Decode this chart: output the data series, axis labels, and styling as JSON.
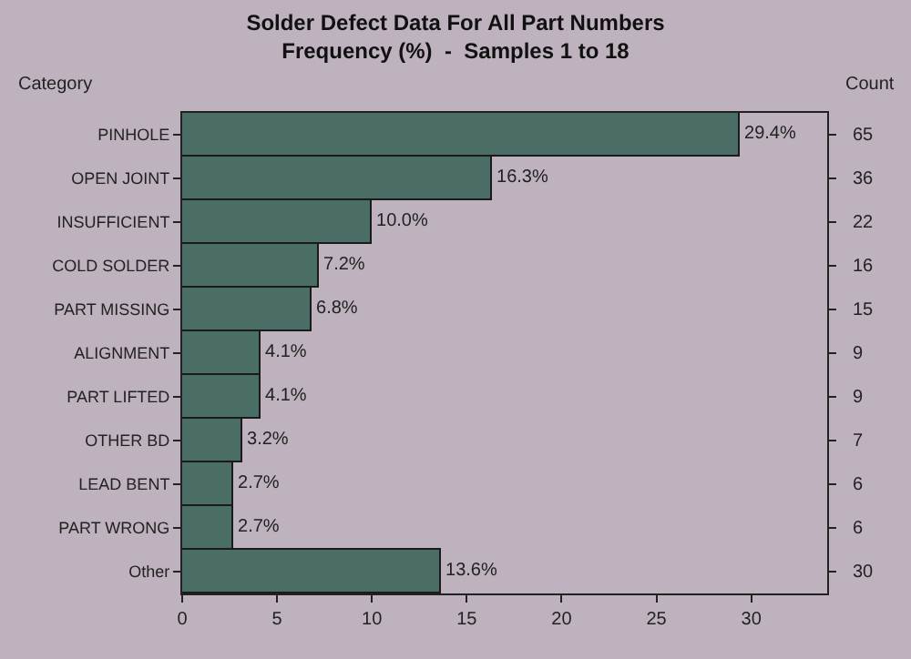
{
  "chart_data": {
    "type": "bar",
    "orientation": "horizontal",
    "title": "Solder Defect Data For All Part Numbers",
    "subtitle": "Frequency (%)  -  Samples 1 to 18",
    "ylabel": "Category",
    "y2label": "Count",
    "categories": [
      "PINHOLE",
      "OPEN JOINT",
      "INSUFFICIENT",
      "COLD SOLDER",
      "PART MISSING",
      "ALIGNMENT",
      "PART LIFTED",
      "OTHER BD",
      "LEAD BENT",
      "PART WRONG",
      "Other"
    ],
    "values": [
      29.4,
      16.3,
      10.0,
      7.2,
      6.8,
      4.1,
      4.1,
      3.2,
      2.7,
      2.7,
      13.6
    ],
    "value_labels": [
      "29.4%",
      "16.3%",
      "10.0%",
      "7.2%",
      "6.8%",
      "4.1%",
      "4.1%",
      "3.2%",
      "2.7%",
      "2.7%",
      "13.6%"
    ],
    "color": "#4a6e66",
    "xlim": [
      0,
      34
    ],
    "xticks": [
      0,
      5,
      10,
      15,
      20,
      25,
      30
    ],
    "grid": false,
    "legend": false,
    "annotations": [
      "65",
      "36",
      "22",
      "16",
      "15",
      "9",
      "9",
      "7",
      "6",
      "6",
      "30"
    ]
  }
}
